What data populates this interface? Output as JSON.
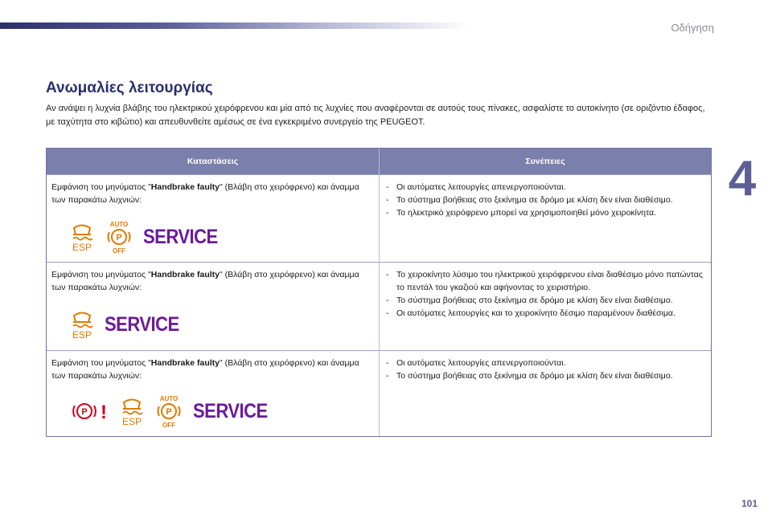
{
  "header": {
    "section_label": "Οδήγηση",
    "chapter_number": "4"
  },
  "title": "Ανωμαλίες λειτουργίας",
  "intro": "Αν ανάψει η λυχνία βλάβης του ηλεκτρικού χειρόφρενου και μία από τις λυχνίες που αναφέρονται σε αυτούς τους πίνακες, ασφαλίστε το αυτοκίνητο (σε οριζόντιο έδαφος, με ταχύτητα στο κιβώτιο) και απευθυνθείτε αμέσως σε ένα εγκεκριμένο συνεργείο της PEUGEOT.",
  "table": {
    "col_situations": "Καταστάσεις",
    "col_consequences": "Συνέπειες",
    "rows": [
      {
        "sit_prefix": "Εμφάνιση του μηνύματος \"",
        "sit_bold": "Handbrake faulty",
        "sit_suffix": "\" (Βλάβη στο χειρόφρενο) και άναμμα των παρακάτω λυχνιών:",
        "icons": {
          "esp": "ESP",
          "auto": "AUTO",
          "p": "P",
          "off": "OFF",
          "service": "SERVICE"
        },
        "consequences": [
          "Οι αυτόματες λειτουργίες απενεργοποιούνται.",
          "Το σύστημα βοήθειας στο ξεκίνημα σε δρόμο με κλίση δεν είναι διαθέσιμο.",
          "Το ηλεκτρικό χειρόφρενο μπορεί να χρησιμοποιηθεί μόνο χειροκίνητα."
        ]
      },
      {
        "sit_prefix": "Εμφάνιση του μηνύματος \"",
        "sit_bold": "Handbrake faulty",
        "sit_suffix": "\" (Βλάβη στο χειρόφρενο) και άναμμα των παρακάτω λυχνιών:",
        "icons": {
          "esp": "ESP",
          "service": "SERVICE"
        },
        "consequences": [
          "Το χειροκίνητο λύσιμο του ηλεκτρικού χειρόφρενου είναι διαθέσιμο μόνο πατώντας το πεντάλ του γκαζιού και αφήνοντας το χειριστήριο.",
          "Το σύστημα βοήθειας στο ξεκίνημα σε δρόμο με κλίση δεν είναι διαθέσιμο.",
          "Οι αυτόματες λειτουργίες και το χειροκίνητο δέσιμο παραμένουν διαθέσιμα."
        ]
      },
      {
        "sit_prefix": "Εμφάνιση του μηνύματος \"",
        "sit_bold": "Handbrake faulty",
        "sit_suffix": "\" (Βλάβη στο χειρόφρενο) και άναμμα των παρακάτω λυχνιών:",
        "icons": {
          "p": "P",
          "excl": "!",
          "esp": "ESP",
          "auto": "AUTO",
          "off": "OFF",
          "service": "SERVICE"
        },
        "consequences": [
          "Οι αυτόματες λειτουργίες απενεργοποιούνται.",
          "Το σύστημα βοήθειας στο ξεκίνημα σε δρόμο με κλίση δεν είναι διαθέσιμο."
        ]
      }
    ]
  },
  "footer": {
    "page_number": "101"
  },
  "colors": {
    "accent": "#2b2f6b",
    "table_header": "#7b7fab",
    "warning_red": "#d0021b",
    "service_purple": "#6a1b9a"
  }
}
